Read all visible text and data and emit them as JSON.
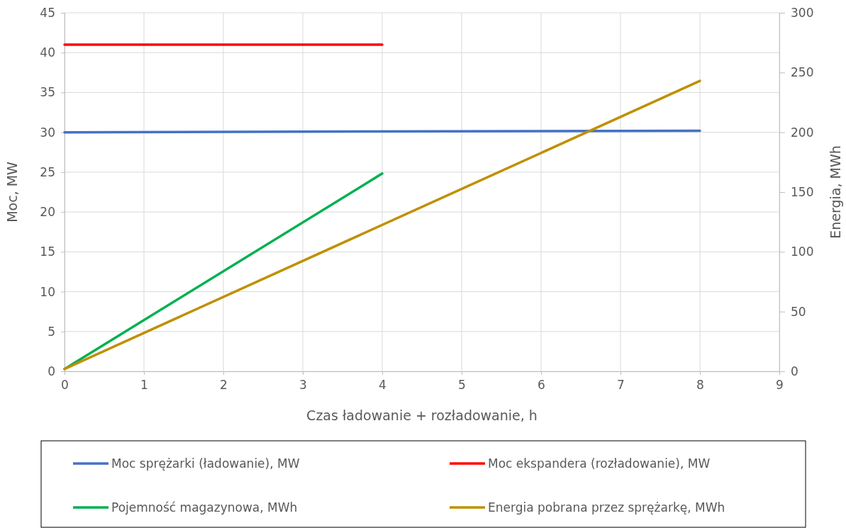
{
  "chart_data": {
    "type": "line",
    "xlabel": "Czas ładowanie + rozładowanie, h",
    "ylabel": "Moc, MW",
    "y2label": "Energia, MWh",
    "xlim": [
      0,
      9
    ],
    "xticks": [
      0,
      1,
      2,
      3,
      4,
      5,
      6,
      7,
      8,
      9
    ],
    "ylim": [
      0,
      45
    ],
    "yticks": [
      0,
      5,
      10,
      15,
      20,
      25,
      30,
      35,
      40,
      45
    ],
    "y2lim": [
      0,
      300
    ],
    "y2ticks": [
      0,
      50,
      100,
      150,
      200,
      250,
      300
    ],
    "grid": true,
    "legend": "bottom",
    "marker": "none",
    "line_style": "solid",
    "series": [
      {
        "name": "Moc sprężarki (ładowanie), MW",
        "color": "#4472c4",
        "x": [
          0,
          8
        ],
        "values": [
          30,
          30.2
        ]
      },
      {
        "name": "Moc ekspandera (rozładowanie), MW",
        "color": "#ff0000",
        "x": [
          0,
          4
        ],
        "values": [
          41,
          41
        ]
      },
      {
        "name": "Pojemność magazynowa, MWh",
        "color": "#00b050",
        "axis": "y2",
        "x": [
          0,
          4
        ],
        "values": [
          2,
          165.5
        ]
      },
      {
        "name": "Energia pobrana przez sprężarkę, MWh",
        "color": "#bf9000",
        "axis": "y2",
        "x": [
          0,
          8
        ],
        "values": [
          2,
          243
        ]
      }
    ]
  }
}
